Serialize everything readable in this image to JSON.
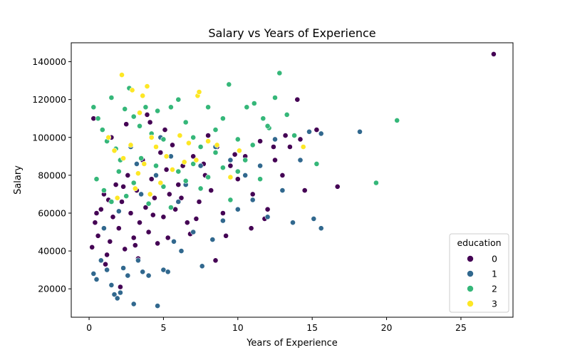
{
  "chart_data": {
    "type": "scatter",
    "title": "Salary vs Years of Experience",
    "xlabel": "Years of Experience",
    "ylabel": "Salary",
    "xlim": [
      -1.2,
      28.5
    ],
    "ylim": [
      5000,
      150000
    ],
    "xticks": [
      0,
      5,
      10,
      15,
      20,
      25
    ],
    "yticks": [
      20000,
      40000,
      60000,
      80000,
      100000,
      120000,
      140000
    ],
    "grid": false,
    "legend": {
      "title": "education",
      "position": "lower-right"
    },
    "series": [
      {
        "name": "0",
        "color": "#440154",
        "points": [
          [
            0.2,
            42000
          ],
          [
            0.4,
            55000
          ],
          [
            0.6,
            48000
          ],
          [
            0.8,
            62000
          ],
          [
            1.0,
            70000
          ],
          [
            1.2,
            38000
          ],
          [
            1.4,
            45000
          ],
          [
            1.6,
            58000
          ],
          [
            1.8,
            75000
          ],
          [
            2.0,
            52000
          ],
          [
            2.2,
            66000
          ],
          [
            2.4,
            41000
          ],
          [
            2.6,
            80000
          ],
          [
            2.8,
            60000
          ],
          [
            3.0,
            47000
          ],
          [
            3.2,
            72000
          ],
          [
            3.4,
            55000
          ],
          [
            3.6,
            88000
          ],
          [
            3.8,
            63000
          ],
          [
            4.0,
            50000
          ],
          [
            4.2,
            78000
          ],
          [
            4.4,
            68000
          ],
          [
            4.6,
            44000
          ],
          [
            4.8,
            92000
          ],
          [
            5.0,
            58000
          ],
          [
            5.2,
            83000
          ],
          [
            5.4,
            70000
          ],
          [
            5.6,
            96000
          ],
          [
            5.8,
            62000
          ],
          [
            6.0,
            75000
          ],
          [
            6.3,
            85000
          ],
          [
            6.6,
            55000
          ],
          [
            7.0,
            90000
          ],
          [
            7.4,
            66000
          ],
          [
            7.8,
            80000
          ],
          [
            8.2,
            72000
          ],
          [
            8.6,
            95000
          ],
          [
            9.0,
            60000
          ],
          [
            9.5,
            85000
          ],
          [
            10.0,
            78000
          ],
          [
            10.5,
            90000
          ],
          [
            11.0,
            70000
          ],
          [
            11.5,
            98000
          ],
          [
            12.0,
            62000
          ],
          [
            12.5,
            88000
          ],
          [
            13.0,
            80000
          ],
          [
            13.5,
            95000
          ],
          [
            14.0,
            120000
          ],
          [
            14.5,
            72000
          ],
          [
            15.3,
            104000
          ],
          [
            16.7,
            74000
          ],
          [
            27.2,
            144000
          ],
          [
            0.3,
            110000
          ],
          [
            1.1,
            33000
          ],
          [
            2.1,
            21000
          ],
          [
            3.3,
            36000
          ],
          [
            4.1,
            108000
          ],
          [
            5.1,
            104000
          ],
          [
            6.8,
            49000
          ],
          [
            8.5,
            35000
          ],
          [
            9.2,
            48000
          ],
          [
            10.9,
            52000
          ],
          [
            11.8,
            57000
          ],
          [
            12.4,
            95000
          ],
          [
            13.2,
            101000
          ],
          [
            14.2,
            99000
          ],
          [
            3.9,
            112000
          ],
          [
            2.5,
            107000
          ],
          [
            1.5,
            100000
          ],
          [
            7.7,
            86000
          ],
          [
            0.5,
            60000
          ],
          [
            1.3,
            67000
          ],
          [
            2.3,
            74000
          ],
          [
            3.1,
            43000
          ],
          [
            4.3,
            59000
          ],
          [
            5.3,
            47000
          ],
          [
            6.2,
            68000
          ],
          [
            7.2,
            57000
          ],
          [
            8.0,
            101000
          ],
          [
            9.8,
            91000
          ]
        ]
      },
      {
        "name": "1",
        "color": "#31688e",
        "points": [
          [
            0.3,
            28000
          ],
          [
            0.5,
            25000
          ],
          [
            0.8,
            35000
          ],
          [
            1.2,
            30000
          ],
          [
            1.5,
            22000
          ],
          [
            1.7,
            17000
          ],
          [
            1.9,
            15000
          ],
          [
            2.1,
            18000
          ],
          [
            2.3,
            31000
          ],
          [
            2.6,
            27000
          ],
          [
            3.0,
            12000
          ],
          [
            3.3,
            35000
          ],
          [
            3.6,
            29000
          ],
          [
            4.0,
            27000
          ],
          [
            4.6,
            11000
          ],
          [
            5.0,
            30000
          ],
          [
            5.3,
            29000
          ],
          [
            5.7,
            45000
          ],
          [
            6.2,
            40000
          ],
          [
            7.0,
            50000
          ],
          [
            7.6,
            32000
          ],
          [
            8.3,
            46000
          ],
          [
            9.0,
            56000
          ],
          [
            10.0,
            62000
          ],
          [
            11.0,
            67000
          ],
          [
            12.0,
            58000
          ],
          [
            13.0,
            72000
          ],
          [
            13.7,
            55000
          ],
          [
            14.2,
            88000
          ],
          [
            14.8,
            103000
          ],
          [
            15.1,
            57000
          ],
          [
            15.6,
            52000
          ],
          [
            15.6,
            102000
          ],
          [
            18.2,
            103000
          ],
          [
            1.0,
            52000
          ],
          [
            2.0,
            61000
          ],
          [
            3.5,
            70000
          ],
          [
            4.5,
            80000
          ],
          [
            5.5,
            90000
          ],
          [
            6.5,
            75000
          ],
          [
            7.5,
            85000
          ],
          [
            8.5,
            95000
          ],
          [
            9.5,
            88000
          ],
          [
            10.5,
            80000
          ],
          [
            11.5,
            85000
          ],
          [
            12.5,
            99000
          ],
          [
            3.2,
            86000
          ],
          [
            2.8,
            95000
          ],
          [
            4.8,
            100000
          ],
          [
            6.0,
            66000
          ]
        ]
      },
      {
        "name": "2",
        "color": "#35b779",
        "points": [
          [
            0.3,
            116000
          ],
          [
            0.6,
            110000
          ],
          [
            0.9,
            104000
          ],
          [
            1.2,
            98000
          ],
          [
            1.5,
            121000
          ],
          [
            1.8,
            94000
          ],
          [
            2.1,
            88000
          ],
          [
            2.4,
            115000
          ],
          [
            2.7,
            126000
          ],
          [
            3.0,
            111000
          ],
          [
            3.4,
            106000
          ],
          [
            3.8,
            116000
          ],
          [
            4.2,
            102000
          ],
          [
            4.6,
            114000
          ],
          [
            5.0,
            99000
          ],
          [
            5.5,
            116000
          ],
          [
            6.0,
            120000
          ],
          [
            6.5,
            108000
          ],
          [
            7.0,
            100000
          ],
          [
            7.5,
            95000
          ],
          [
            8.0,
            116000
          ],
          [
            8.5,
            104000
          ],
          [
            9.0,
            110000
          ],
          [
            9.4,
            128000
          ],
          [
            10.0,
            99000
          ],
          [
            10.6,
            116000
          ],
          [
            11.1,
            118000
          ],
          [
            11.7,
            110000
          ],
          [
            12.1,
            105000
          ],
          [
            12.5,
            121000
          ],
          [
            12.8,
            134000
          ],
          [
            13.3,
            112000
          ],
          [
            13.8,
            101000
          ],
          [
            15.3,
            86000
          ],
          [
            19.3,
            76000
          ],
          [
            20.7,
            109000
          ],
          [
            0.5,
            78000
          ],
          [
            1.0,
            72000
          ],
          [
            1.5,
            66000
          ],
          [
            2.0,
            82000
          ],
          [
            2.5,
            69000
          ],
          [
            3.0,
            76000
          ],
          [
            3.5,
            89000
          ],
          [
            4.0,
            65000
          ],
          [
            4.5,
            85000
          ],
          [
            5.0,
            74000
          ],
          [
            5.5,
            63000
          ],
          [
            6.0,
            82000
          ],
          [
            6.5,
            77000
          ],
          [
            7.0,
            86000
          ],
          [
            7.5,
            73000
          ],
          [
            8.0,
            79000
          ],
          [
            8.5,
            92000
          ],
          [
            9.0,
            84000
          ],
          [
            9.5,
            67000
          ],
          [
            10.0,
            82000
          ],
          [
            10.5,
            88000
          ],
          [
            11.0,
            96000
          ],
          [
            11.5,
            78000
          ],
          [
            12.0,
            106000
          ]
        ]
      },
      {
        "name": "3",
        "color": "#fde725",
        "points": [
          [
            2.2,
            133000
          ],
          [
            2.9,
            125000
          ],
          [
            3.6,
            122000
          ],
          [
            3.9,
            127000
          ],
          [
            3.4,
            113000
          ],
          [
            7.3,
            122000
          ],
          [
            7.4,
            124000
          ],
          [
            1.3,
            100000
          ],
          [
            1.7,
            93000
          ],
          [
            2.3,
            89000
          ],
          [
            2.8,
            96000
          ],
          [
            3.3,
            81000
          ],
          [
            3.7,
            86000
          ],
          [
            4.2,
            100000
          ],
          [
            4.5,
            95000
          ],
          [
            5.2,
            90000
          ],
          [
            6.1,
            101000
          ],
          [
            6.7,
            97000
          ],
          [
            7.2,
            88000
          ],
          [
            8.0,
            98000
          ],
          [
            8.6,
            96000
          ],
          [
            9.5,
            79000
          ],
          [
            10.1,
            93000
          ],
          [
            1.9,
            68000
          ],
          [
            3.1,
            73000
          ],
          [
            4.1,
            70000
          ],
          [
            4.8,
            76000
          ],
          [
            5.6,
            83000
          ],
          [
            6.4,
            87000
          ],
          [
            14.4,
            95000
          ]
        ]
      }
    ]
  }
}
